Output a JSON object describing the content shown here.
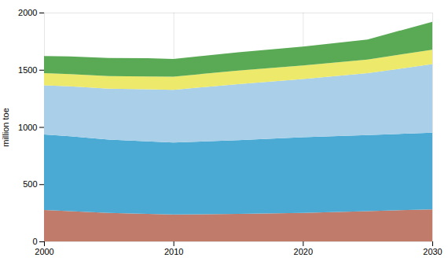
{
  "chart_data": {
    "type": "area",
    "stacked": true,
    "x": [
      2000,
      2002,
      2005,
      2008,
      2010,
      2015,
      2020,
      2025,
      2030
    ],
    "xlim": [
      2000,
      2030
    ],
    "xticks": [
      2000,
      2010,
      2020,
      2030
    ],
    "ylim": [
      0,
      2000
    ],
    "yticks": [
      0,
      500,
      1000,
      1500,
      2000
    ],
    "y_label": "million toe",
    "grid": true,
    "series": [
      {
        "color": "#c07b6a",
        "values": [
          275,
          265,
          250,
          240,
          235,
          240,
          250,
          265,
          280
        ]
      },
      {
        "color": "#4aaad4",
        "values": [
          660,
          655,
          640,
          635,
          630,
          645,
          660,
          665,
          670
        ]
      },
      {
        "color": "#aacfe8",
        "values": [
          430,
          435,
          445,
          455,
          460,
          490,
          510,
          540,
          600
        ]
      },
      {
        "color": "#ede96a",
        "values": [
          105,
          107,
          110,
          112,
          115,
          118,
          118,
          120,
          125
        ]
      },
      {
        "color": "#5aaa55",
        "values": [
          150,
          155,
          158,
          160,
          155,
          160,
          165,
          175,
          245
        ]
      }
    ]
  }
}
